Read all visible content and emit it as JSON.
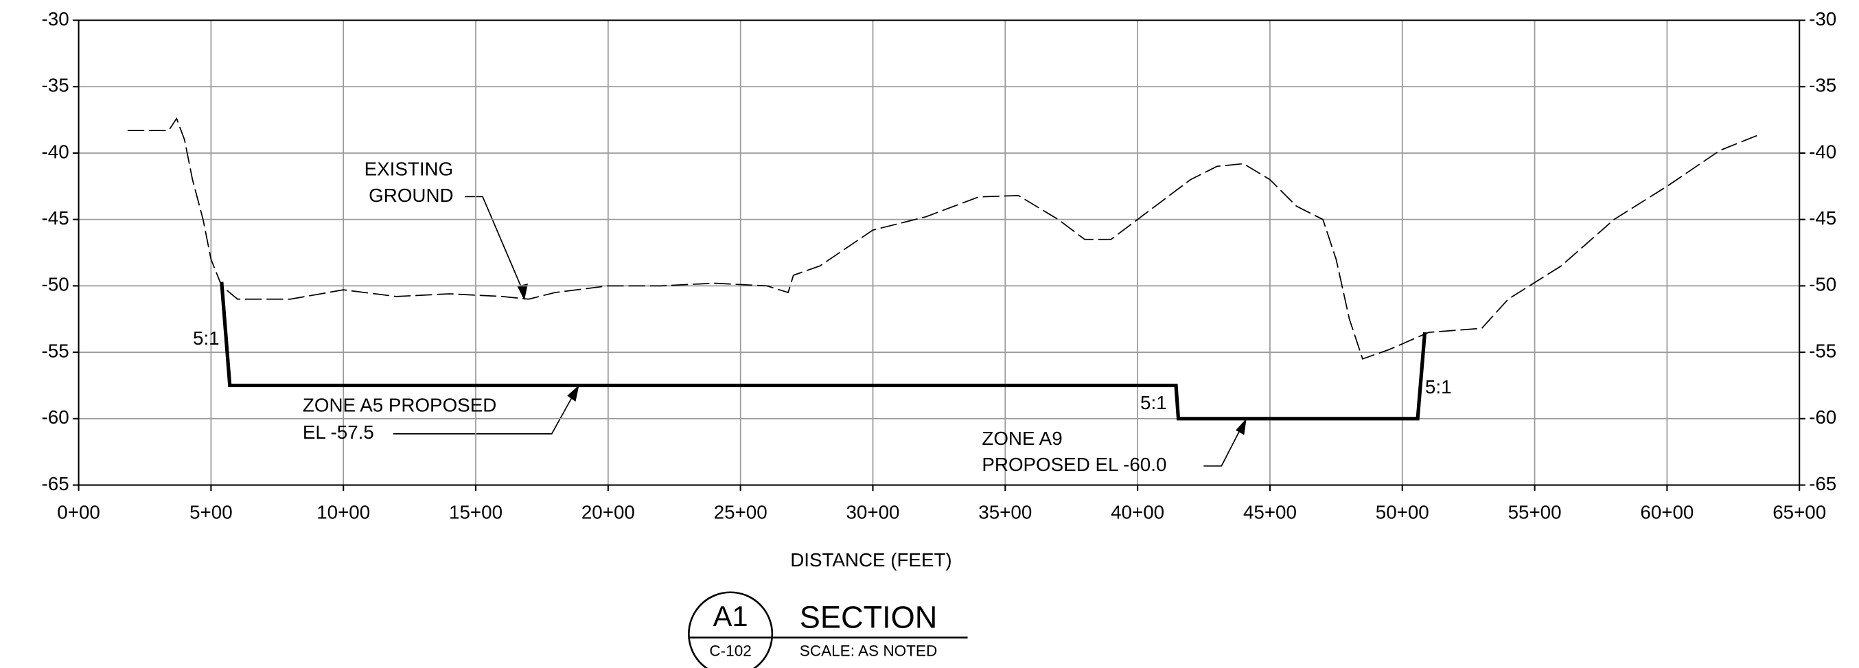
{
  "chart_data": {
    "type": "line",
    "x_label": "DISTANCE (FEET)",
    "xlim": [
      0,
      6500
    ],
    "ylim": [
      -65,
      -30
    ],
    "xticks": [
      {
        "value": 0,
        "label": "0+00"
      },
      {
        "value": 500,
        "label": "5+00"
      },
      {
        "value": 1000,
        "label": "10+00"
      },
      {
        "value": 1500,
        "label": "15+00"
      },
      {
        "value": 2000,
        "label": "20+00"
      },
      {
        "value": 2500,
        "label": "25+00"
      },
      {
        "value": 3000,
        "label": "30+00"
      },
      {
        "value": 3500,
        "label": "35+00"
      },
      {
        "value": 4000,
        "label": "40+00"
      },
      {
        "value": 4500,
        "label": "45+00"
      },
      {
        "value": 5000,
        "label": "50+00"
      },
      {
        "value": 5500,
        "label": "55+00"
      },
      {
        "value": 6000,
        "label": "60+00"
      },
      {
        "value": 6500,
        "label": "65+00"
      }
    ],
    "yticks": [
      -65,
      -60,
      -55,
      -50,
      -45,
      -40,
      -35,
      -30
    ],
    "grid": true,
    "series": [
      {
        "color": "#000000",
        "dashed": true,
        "x": [
          185,
          340,
          370,
          400,
          430,
          470,
          500,
          540,
          600,
          700,
          800,
          1000,
          1200,
          1400,
          1600,
          1700,
          1800,
          2000,
          2200,
          2400,
          2600,
          2680,
          2700,
          2800,
          3000,
          3200,
          3400,
          3550,
          3700,
          3800,
          3900,
          4000,
          4100,
          4200,
          4300,
          4400,
          4500,
          4600,
          4700,
          4750,
          4800,
          4850,
          4950,
          5100,
          5300,
          5400,
          5600,
          5800,
          6000,
          6200,
          6350
        ],
        "values": [
          -38.3,
          -38.3,
          -37.4,
          -39,
          -42,
          -45,
          -48,
          -50,
          -51,
          -51,
          -51,
          -50.3,
          -50.8,
          -50.6,
          -50.8,
          -51,
          -50.5,
          -50,
          -50,
          -49.8,
          -50,
          -50.5,
          -49.2,
          -48.5,
          -45.8,
          -44.8,
          -43.3,
          -43.2,
          -45,
          -46.5,
          -46.5,
          -45,
          -43.5,
          -42,
          -41,
          -40.8,
          -42,
          -44,
          -45,
          -48,
          -52.5,
          -55.5,
          -54.8,
          -53.5,
          -53.2,
          -51,
          -48.5,
          -45,
          -42.5,
          -39.8,
          -38.6
        ]
      },
      {
        "color": "#000000",
        "dashed": false,
        "x": [
          540,
          571,
          4145,
          4154,
          5058,
          5085
        ],
        "values": [
          -49.7,
          -57.5,
          -57.5,
          -60,
          -60,
          -53.5
        ]
      }
    ],
    "annotations": [
      "EXISTING",
      "GROUND",
      "5:1",
      "ZONE A5 PROPOSED",
      "EL -57.5",
      "5:1",
      "ZONE A9",
      "PROPOSED EL -60.0",
      "5:1"
    ],
    "title_block": {
      "number": "A1",
      "sheet": "C-102",
      "title": "SECTION",
      "scale": "SCALE: AS NOTED"
    }
  }
}
